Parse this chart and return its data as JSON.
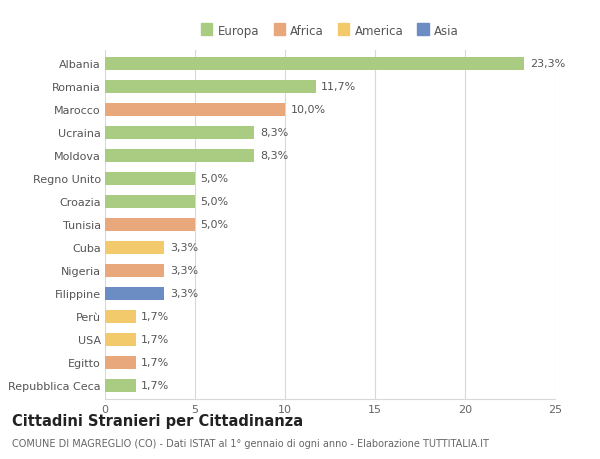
{
  "title": "Cittadini Stranieri per Cittadinanza",
  "subtitle": "COMUNE DI MAGREGLIO (CO) - Dati ISTAT al 1° gennaio di ogni anno - Elaborazione TUTTITALIA.IT",
  "countries": [
    "Albania",
    "Romania",
    "Marocco",
    "Ucraina",
    "Moldova",
    "Regno Unito",
    "Croazia",
    "Tunisia",
    "Cuba",
    "Nigeria",
    "Filippine",
    "Perù",
    "USA",
    "Egitto",
    "Repubblica Ceca"
  ],
  "values": [
    23.3,
    11.7,
    10.0,
    8.3,
    8.3,
    5.0,
    5.0,
    5.0,
    3.3,
    3.3,
    3.3,
    1.7,
    1.7,
    1.7,
    1.7
  ],
  "labels": [
    "23,3%",
    "11,7%",
    "10,0%",
    "8,3%",
    "8,3%",
    "5,0%",
    "5,0%",
    "5,0%",
    "3,3%",
    "3,3%",
    "3,3%",
    "1,7%",
    "1,7%",
    "1,7%",
    "1,7%"
  ],
  "continents": [
    "Europa",
    "Europa",
    "Africa",
    "Europa",
    "Europa",
    "Europa",
    "Europa",
    "Africa",
    "America",
    "Africa",
    "Asia",
    "America",
    "America",
    "Africa",
    "Europa"
  ],
  "continent_colors": {
    "Europa": "#aacb82",
    "Africa": "#e8a87c",
    "America": "#f2ca6b",
    "Asia": "#6b8dc4"
  },
  "legend_order": [
    "Europa",
    "Africa",
    "America",
    "Asia"
  ],
  "xlim": [
    0,
    25
  ],
  "xticks": [
    0,
    5,
    10,
    15,
    20,
    25
  ],
  "bar_height": 0.55,
  "background_color": "#ffffff",
  "grid_color": "#d8d8d8",
  "label_fontsize": 8.0,
  "tick_fontsize": 8.0,
  "legend_fontsize": 8.5,
  "title_fontsize": 10.5,
  "subtitle_fontsize": 7.0
}
